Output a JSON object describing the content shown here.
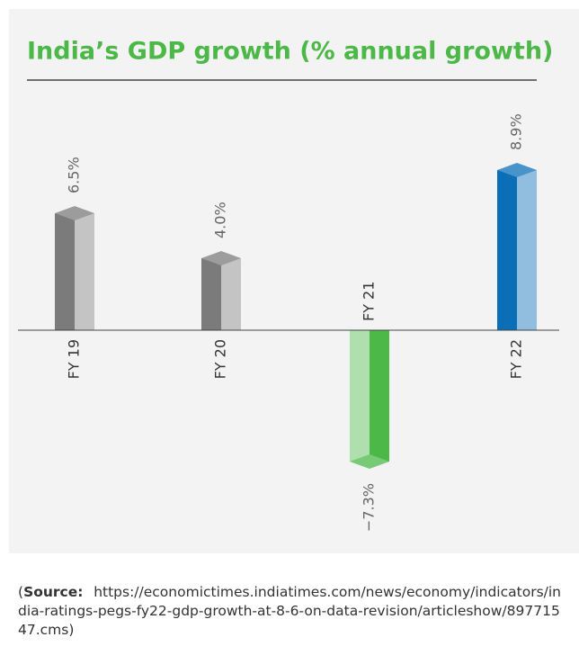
{
  "chart_data": {
    "type": "bar3d",
    "title": "India’s GDP growth (% annual growth)",
    "categories": [
      "FY 19",
      "FY 20",
      "FY 21",
      "FY 22"
    ],
    "values": [
      6.5,
      4.0,
      -7.3,
      8.9
    ],
    "value_labels": [
      "6.5%",
      "4.0%",
      "−7.3%",
      "8.9%"
    ],
    "colors": [
      "#7b7b7b",
      "#7b7b7b",
      "#4cb848",
      "#0b6fb8"
    ],
    "ylim": [
      -10,
      10
    ]
  },
  "source": {
    "open": "(",
    "label": "Source:",
    "url": "https://economictimes.indiatimes.com/news/economy/indicators/india-ratings-pegs-fy22-gdp-growth-at-8-6-on-data-revision/articleshow/89771547.cms",
    "close": ")"
  }
}
